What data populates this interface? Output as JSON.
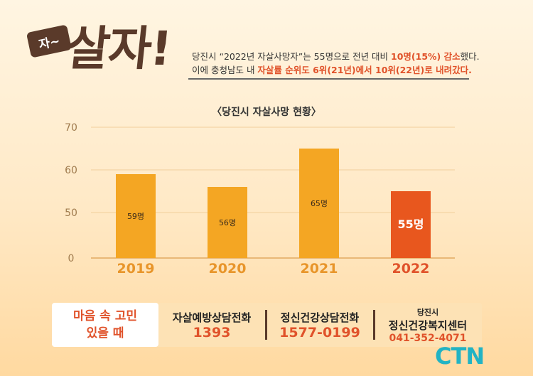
{
  "header": {
    "badge_small": "자~",
    "badge_big": "살자!",
    "line1_part1": "당진시 “2022년 자살사망자”는 55명으로 전년 대비 ",
    "line1_highlight": "10명(15%) 감소",
    "line1_part2": "했다.",
    "line2_part1": "이에 충청남도 내 ",
    "line2_highlight": "자살률 순위도 6위(21년)에서 10위(22년)로 내려갔다."
  },
  "chart_data": {
    "type": "bar",
    "title": "〈당진시 자살사망 현황〉",
    "categories": [
      "2019",
      "2020",
      "2021",
      "2022"
    ],
    "values": [
      59,
      56,
      65,
      55
    ],
    "data_labels": [
      "59명",
      "56명",
      "65명",
      "55명"
    ],
    "ylim": [
      0,
      70
    ],
    "yticks": [
      "0",
      "50",
      "60",
      "70"
    ],
    "grid": true,
    "colors": [
      "#f4a623",
      "#f4a623",
      "#f4a623",
      "#e8571e"
    ]
  },
  "footer": {
    "left_line1": "마음 속 고민",
    "left_line2": "있을 때",
    "items": [
      {
        "label": "자살예방상담전화",
        "number": "1393"
      },
      {
        "label": "정신건강상담전화",
        "number": "1577-0199"
      },
      {
        "sublabel": "당진시",
        "label": "정신건강복지센터",
        "number": "041-352-4071"
      }
    ]
  },
  "logo": "CTN"
}
